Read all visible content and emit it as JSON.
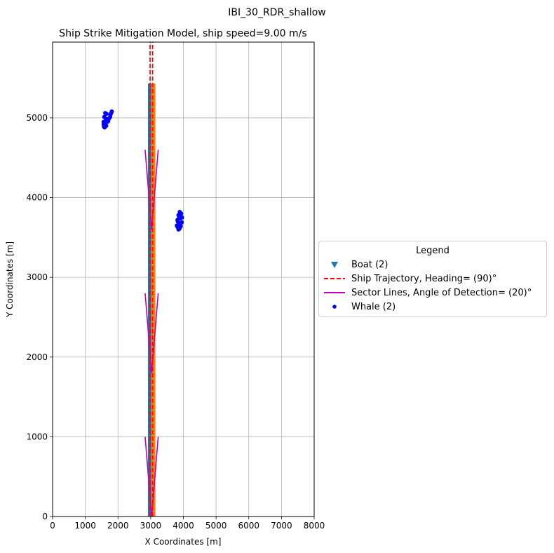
{
  "chart_data": {
    "type": "scatter",
    "suptitle": "IBI_30_RDR_shallow",
    "title": "Ship Strike Mitigation Model, ship speed=9.00 m/s",
    "xlabel": "X Coordinates [m]",
    "ylabel": "Y Coordinates [m]",
    "xlim": [
      0,
      8000
    ],
    "ylim": [
      0,
      5950
    ],
    "xticks": [
      "0",
      "1000",
      "2000",
      "3000",
      "4000",
      "5000",
      "6000",
      "7000",
      "8000"
    ],
    "yticks": [
      "0",
      "1000",
      "2000",
      "3000",
      "4000",
      "5000"
    ],
    "xtick_values": [
      0,
      1000,
      2000,
      3000,
      4000,
      5000,
      6000,
      7000,
      8000
    ],
    "ytick_values": [
      0,
      1000,
      2000,
      3000,
      4000,
      5000
    ],
    "grid": true,
    "legend_placement": "center-right outside",
    "legend_title": "Legend",
    "colors": {
      "boat_blue": "#1f77b4",
      "boat_orange": "#ff7f0e",
      "trajectory": "#ff0000",
      "sector": "#bf00bf",
      "whale": "#0000ff",
      "grid": "#b0b0b0"
    },
    "legend": [
      {
        "label": "Boat (2)",
        "marker": "triangle-down",
        "color": "#1f77b4"
      },
      {
        "label": "Ship Trajectory, Heading= (90)°",
        "marker": "dashed-line",
        "color": "#ff0000"
      },
      {
        "label": "Sector Lines, Angle of Detection= (20)°",
        "marker": "solid-line",
        "color": "#bf00bf"
      },
      {
        "label": "Whale (2)",
        "marker": "dot",
        "color": "#0000ff"
      }
    ],
    "boats": [
      {
        "x_center": 2980,
        "y_start": 0,
        "y_end": 5430,
        "color": "#1f77b4"
      },
      {
        "x_center": 3080,
        "y_start": 0,
        "y_end": 5430,
        "color": "#ff7f0e"
      }
    ],
    "trajectories": [
      {
        "x": [
          2980,
          2980
        ],
        "y": [
          0,
          5950
        ]
      },
      {
        "x": [
          3060,
          3060
        ],
        "y": [
          0,
          5950
        ]
      }
    ],
    "sectors": [
      {
        "apex": [
          3030,
          0
        ],
        "left_end": [
          2830,
          1000
        ],
        "right_end": [
          3230,
          1000
        ]
      },
      {
        "apex": [
          3030,
          1800
        ],
        "left_end": [
          2830,
          2800
        ],
        "right_end": [
          3230,
          2800
        ]
      },
      {
        "apex": [
          3030,
          3600
        ],
        "left_end": [
          2830,
          4600
        ],
        "right_end": [
          3230,
          4600
        ]
      }
    ],
    "whales": [
      {
        "points": [
          [
            1560,
            4950
          ],
          [
            1580,
            5010
          ],
          [
            1610,
            5060
          ],
          [
            1650,
            5050
          ],
          [
            1630,
            4990
          ],
          [
            1600,
            4920
          ],
          [
            1570,
            4890
          ],
          [
            1620,
            4910
          ],
          [
            1700,
            4960
          ],
          [
            1760,
            5010
          ],
          [
            1790,
            5060
          ],
          [
            1810,
            5080
          ],
          [
            1770,
            5040
          ],
          [
            1720,
            4990
          ],
          [
            1680,
            4950
          ],
          [
            1640,
            4900
          ],
          [
            1590,
            4880
          ],
          [
            1560,
            4920
          ]
        ]
      },
      {
        "points": [
          [
            3800,
            3650
          ],
          [
            3820,
            3720
          ],
          [
            3850,
            3780
          ],
          [
            3890,
            3820
          ],
          [
            3930,
            3800
          ],
          [
            3960,
            3750
          ],
          [
            3950,
            3690
          ],
          [
            3920,
            3640
          ],
          [
            3880,
            3610
          ],
          [
            3840,
            3620
          ],
          [
            3860,
            3680
          ],
          [
            3900,
            3740
          ],
          [
            3920,
            3790
          ],
          [
            3870,
            3760
          ],
          [
            3830,
            3700
          ],
          [
            3810,
            3640
          ],
          [
            3850,
            3600
          ],
          [
            3910,
            3660
          ]
        ]
      }
    ]
  }
}
